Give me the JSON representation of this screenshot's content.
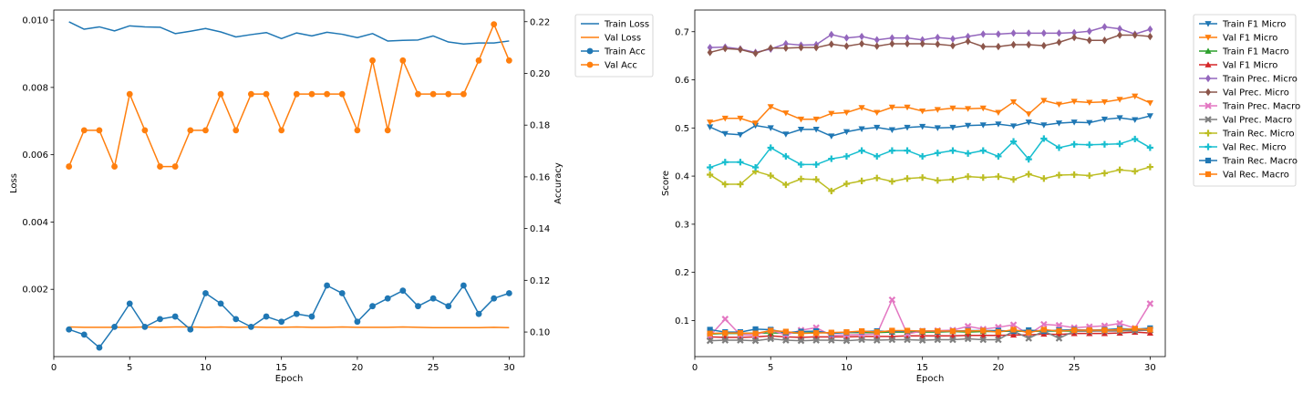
{
  "chart_data": [
    {
      "type": "line",
      "xlabel": "Epoch",
      "ylabel": "Loss",
      "y2label": "Accuracy",
      "xlim": [
        0,
        31
      ],
      "ylim": [
        0.0,
        0.0103
      ],
      "y2lim": [
        0.0905,
        0.2245
      ],
      "xticks": [
        0,
        5,
        10,
        15,
        20,
        25,
        30
      ],
      "yticks": [
        0.002,
        0.004,
        0.006,
        0.008,
        0.01
      ],
      "ytick_labels": [
        "0.002",
        "0.004",
        "0.006",
        "0.008",
        "0.010"
      ],
      "y2ticks": [
        0.1,
        0.12,
        0.14,
        0.16,
        0.18,
        0.2,
        0.22
      ],
      "y2tick_labels": [
        "0.10",
        "0.12",
        "0.14",
        "0.16",
        "0.18",
        "0.20",
        "0.22"
      ],
      "legend_position": "outside-right",
      "x": [
        1,
        2,
        3,
        4,
        5,
        6,
        7,
        8,
        9,
        10,
        11,
        12,
        13,
        14,
        15,
        16,
        17,
        18,
        19,
        20,
        21,
        22,
        23,
        24,
        25,
        26,
        27,
        28,
        29,
        30
      ],
      "series": [
        {
          "name": "Train Loss",
          "axis": "left",
          "color": "#1f77b4",
          "marker": "none",
          "values": [
            0.00995,
            0.00973,
            0.0098,
            0.00968,
            0.00983,
            0.0098,
            0.00979,
            0.0096,
            0.00967,
            0.00975,
            0.00965,
            0.0095,
            0.00957,
            0.00963,
            0.00945,
            0.00962,
            0.00953,
            0.00964,
            0.00958,
            0.00948,
            0.0096,
            0.00938,
            0.0094,
            0.00941,
            0.00953,
            0.00935,
            0.00929,
            0.00932,
            0.00932,
            0.00938
          ]
        },
        {
          "name": "Val Loss",
          "axis": "left",
          "color": "#ff7f0e",
          "marker": "none",
          "values": [
            0.00088,
            0.00087,
            0.00087,
            0.00087,
            0.00087,
            0.00088,
            0.00087,
            0.00088,
            0.00088,
            0.00087,
            0.00088,
            0.00087,
            0.00088,
            0.00087,
            0.00087,
            0.00088,
            0.00087,
            0.00087,
            0.00088,
            0.00087,
            0.00087,
            0.00087,
            0.00088,
            0.00087,
            0.00086,
            0.00086,
            0.00086,
            0.00086,
            0.00087,
            0.00086
          ]
        },
        {
          "name": "Train Acc",
          "axis": "right",
          "color": "#1f77b4",
          "marker": "circle",
          "values": [
            0.101,
            0.099,
            0.094,
            0.102,
            0.111,
            0.102,
            0.105,
            0.106,
            0.101,
            0.115,
            0.111,
            0.105,
            0.102,
            0.106,
            0.104,
            0.107,
            0.106,
            0.118,
            0.115,
            0.104,
            0.11,
            0.113,
            0.116,
            0.11,
            0.113,
            0.11,
            0.118,
            0.107,
            0.113,
            0.115
          ]
        },
        {
          "name": "Val Acc",
          "axis": "right",
          "color": "#ff7f0e",
          "marker": "circle",
          "values": [
            0.164,
            0.178,
            0.178,
            0.164,
            0.192,
            0.178,
            0.164,
            0.164,
            0.178,
            0.178,
            0.192,
            0.178,
            0.192,
            0.192,
            0.178,
            0.192,
            0.192,
            0.192,
            0.192,
            0.178,
            0.205,
            0.178,
            0.205,
            0.192,
            0.192,
            0.192,
            0.192,
            0.205,
            0.219,
            0.205
          ]
        }
      ]
    },
    {
      "type": "line",
      "xlabel": "Epoch",
      "ylabel": "Score",
      "xlim": [
        0,
        31
      ],
      "ylim": [
        0.025,
        0.745
      ],
      "xticks": [
        0,
        5,
        10,
        15,
        20,
        25,
        30
      ],
      "yticks": [
        0.1,
        0.2,
        0.3,
        0.4,
        0.5,
        0.6,
        0.7
      ],
      "ytick_labels": [
        "0.1",
        "0.2",
        "0.3",
        "0.4",
        "0.5",
        "0.6",
        "0.7"
      ],
      "legend_position": "outside-right",
      "x": [
        1,
        2,
        3,
        4,
        5,
        6,
        7,
        8,
        9,
        10,
        11,
        12,
        13,
        14,
        15,
        16,
        17,
        18,
        19,
        20,
        21,
        22,
        23,
        24,
        25,
        26,
        27,
        28,
        29,
        30
      ],
      "series": [
        {
          "name": "Train F1 Micro",
          "color": "#1f77b4",
          "marker": "tri_down",
          "values": [
            0.502,
            0.488,
            0.486,
            0.505,
            0.5,
            0.487,
            0.497,
            0.497,
            0.483,
            0.492,
            0.498,
            0.501,
            0.496,
            0.501,
            0.503,
            0.5,
            0.501,
            0.505,
            0.506,
            0.508,
            0.504,
            0.512,
            0.506,
            0.51,
            0.512,
            0.511,
            0.518,
            0.521,
            0.517,
            0.525
          ]
        },
        {
          "name": "Val F1 Micro",
          "color": "#ff7f0e",
          "marker": "tri_down",
          "values": [
            0.512,
            0.52,
            0.52,
            0.51,
            0.544,
            0.531,
            0.518,
            0.518,
            0.53,
            0.532,
            0.542,
            0.532,
            0.543,
            0.543,
            0.535,
            0.538,
            0.541,
            0.54,
            0.541,
            0.532,
            0.554,
            0.529,
            0.557,
            0.549,
            0.555,
            0.553,
            0.554,
            0.559,
            0.566,
            0.552
          ]
        },
        {
          "name": "Train F1 Macro",
          "color": "#2ca02c",
          "marker": "tri_up",
          "values": [
            0.072,
            0.073,
            0.073,
            0.074,
            0.074,
            0.074,
            0.074,
            0.075,
            0.074,
            0.075,
            0.075,
            0.075,
            0.076,
            0.076,
            0.076,
            0.076,
            0.077,
            0.076,
            0.077,
            0.077,
            0.078,
            0.077,
            0.078,
            0.078,
            0.078,
            0.078,
            0.079,
            0.079,
            0.08,
            0.08
          ]
        },
        {
          "name": "Val F1 Micro",
          "color": "#d62728",
          "marker": "tri_up",
          "values": [
            0.066,
            0.065,
            0.065,
            0.066,
            0.068,
            0.066,
            0.065,
            0.066,
            0.066,
            0.066,
            0.067,
            0.067,
            0.067,
            0.068,
            0.068,
            0.068,
            0.068,
            0.069,
            0.069,
            0.069,
            0.07,
            0.07,
            0.072,
            0.071,
            0.073,
            0.073,
            0.073,
            0.074,
            0.076,
            0.074
          ]
        },
        {
          "name": "Train Prec. Micro",
          "color": "#9467bd",
          "marker": "diamond",
          "values": [
            0.667,
            0.668,
            0.664,
            0.657,
            0.664,
            0.675,
            0.672,
            0.673,
            0.694,
            0.687,
            0.69,
            0.683,
            0.687,
            0.687,
            0.683,
            0.688,
            0.685,
            0.69,
            0.695,
            0.695,
            0.697,
            0.697,
            0.697,
            0.697,
            0.698,
            0.701,
            0.71,
            0.706,
            0.695,
            0.705
          ]
        },
        {
          "name": "Val Prec. Micro",
          "color": "#8c564b",
          "marker": "diamond",
          "values": [
            0.657,
            0.665,
            0.663,
            0.655,
            0.666,
            0.666,
            0.667,
            0.667,
            0.674,
            0.67,
            0.675,
            0.67,
            0.675,
            0.675,
            0.675,
            0.674,
            0.671,
            0.68,
            0.669,
            0.669,
            0.673,
            0.673,
            0.671,
            0.678,
            0.688,
            0.682,
            0.682,
            0.693,
            0.693,
            0.69
          ]
        },
        {
          "name": "Train Prec. Macro",
          "color": "#e377c2",
          "marker": "x",
          "values": [
            0.068,
            0.103,
            0.07,
            0.07,
            0.08,
            0.07,
            0.08,
            0.085,
            0.069,
            0.07,
            0.071,
            0.072,
            0.143,
            0.072,
            0.078,
            0.079,
            0.08,
            0.088,
            0.082,
            0.086,
            0.091,
            0.071,
            0.092,
            0.09,
            0.085,
            0.087,
            0.089,
            0.094,
            0.084,
            0.135
          ]
        },
        {
          "name": "Val Prec. Macro",
          "color": "#7f7f7f",
          "marker": "x",
          "values": [
            0.058,
            0.059,
            0.059,
            0.058,
            0.062,
            0.059,
            0.058,
            0.059,
            0.059,
            0.058,
            0.06,
            0.059,
            0.06,
            0.06,
            0.059,
            0.06,
            0.06,
            0.062,
            0.06,
            0.06,
            0.078,
            0.063,
            0.078,
            0.063,
            0.078,
            0.078,
            0.078,
            0.078,
            0.079,
            0.08
          ]
        },
        {
          "name": "Train Rec. Micro",
          "color": "#bcbd22",
          "marker": "plus",
          "values": [
            0.403,
            0.383,
            0.383,
            0.41,
            0.401,
            0.382,
            0.394,
            0.393,
            0.369,
            0.384,
            0.39,
            0.396,
            0.389,
            0.395,
            0.397,
            0.391,
            0.393,
            0.399,
            0.397,
            0.399,
            0.393,
            0.404,
            0.395,
            0.402,
            0.403,
            0.401,
            0.406,
            0.413,
            0.41,
            0.419
          ]
        },
        {
          "name": "Val Rec. Micro",
          "color": "#17becf",
          "marker": "plus",
          "values": [
            0.418,
            0.429,
            0.429,
            0.418,
            0.459,
            0.441,
            0.424,
            0.424,
            0.436,
            0.441,
            0.453,
            0.441,
            0.453,
            0.453,
            0.441,
            0.448,
            0.453,
            0.447,
            0.453,
            0.441,
            0.472,
            0.435,
            0.478,
            0.459,
            0.466,
            0.465,
            0.466,
            0.467,
            0.477,
            0.459
          ]
        },
        {
          "name": "Train Rec. Macro",
          "color": "#1f77b4",
          "marker": "square",
          "values": [
            0.081,
            0.076,
            0.076,
            0.082,
            0.081,
            0.075,
            0.077,
            0.078,
            0.073,
            0.075,
            0.077,
            0.078,
            0.077,
            0.078,
            0.078,
            0.077,
            0.078,
            0.079,
            0.079,
            0.079,
            0.078,
            0.08,
            0.078,
            0.08,
            0.081,
            0.08,
            0.081,
            0.083,
            0.082,
            0.084
          ]
        },
        {
          "name": "Val Rec. Macro",
          "color": "#ff7f0e",
          "marker": "square",
          "values": [
            0.073,
            0.074,
            0.074,
            0.073,
            0.079,
            0.077,
            0.073,
            0.074,
            0.075,
            0.076,
            0.078,
            0.076,
            0.079,
            0.079,
            0.078,
            0.078,
            0.078,
            0.078,
            0.079,
            0.076,
            0.081,
            0.075,
            0.081,
            0.078,
            0.08,
            0.08,
            0.08,
            0.081,
            0.083,
            0.081
          ]
        }
      ]
    }
  ]
}
